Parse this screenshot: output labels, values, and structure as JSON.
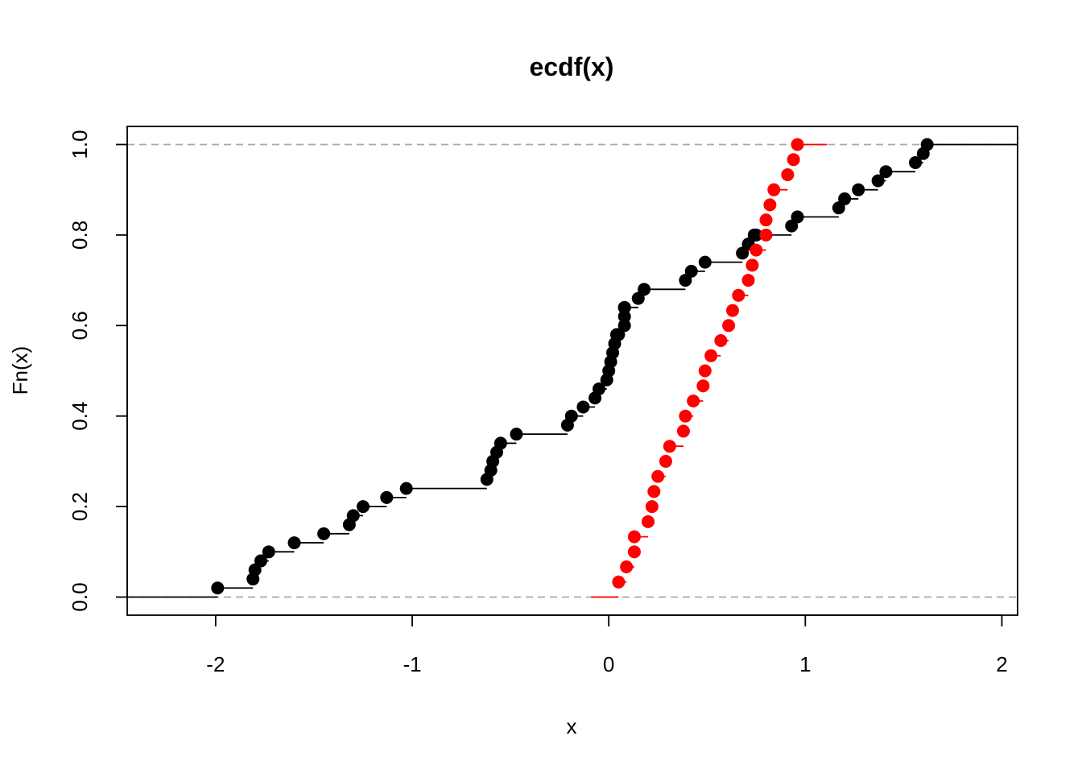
{
  "chart_data": {
    "type": "step",
    "title": "ecdf(x)",
    "xlabel": "x",
    "ylabel": "Fn(x)",
    "xlim": [
      -2.45,
      2.08
    ],
    "ylim": [
      -0.04,
      1.04
    ],
    "x_ticks": [
      {
        "value": -2,
        "label": "-2"
      },
      {
        "value": -1,
        "label": "-1"
      },
      {
        "value": 0,
        "label": "0"
      },
      {
        "value": 1,
        "label": "1"
      },
      {
        "value": 2,
        "label": "2"
      }
    ],
    "y_ticks": [
      {
        "value": 0.0,
        "label": "0.0"
      },
      {
        "value": 0.2,
        "label": "0.2"
      },
      {
        "value": 0.4,
        "label": "0.4"
      },
      {
        "value": 0.6,
        "label": "0.6"
      },
      {
        "value": 0.8,
        "label": "0.8"
      },
      {
        "value": 1.0,
        "label": "1.0"
      }
    ],
    "reference_lines": [
      0,
      1
    ],
    "series": [
      {
        "color": "#000000",
        "x": [
          -1.99,
          -1.81,
          -1.8,
          -1.77,
          -1.73,
          -1.6,
          -1.45,
          -1.32,
          -1.3,
          -1.25,
          -1.13,
          -1.03,
          -0.62,
          -0.6,
          -0.59,
          -0.57,
          -0.55,
          -0.47,
          -0.21,
          -0.19,
          -0.13,
          -0.07,
          -0.05,
          -0.01,
          0.0,
          0.01,
          0.02,
          0.03,
          0.04,
          0.05,
          0.08,
          0.08,
          0.08,
          0.08,
          0.15,
          0.18,
          0.39,
          0.42,
          0.49,
          0.68,
          0.71,
          0.74,
          0.75,
          0.93,
          0.96,
          1.17,
          1.2,
          1.27,
          1.37,
          1.41,
          1.56,
          1.6,
          1.62
        ],
        "y": [
          0.02,
          0.04,
          0.06,
          0.08,
          0.1,
          0.12,
          0.14,
          0.16,
          0.18,
          0.2,
          0.22,
          0.24,
          0.26,
          0.28,
          0.3,
          0.32,
          0.34,
          0.36,
          0.38,
          0.4,
          0.42,
          0.44,
          0.46,
          0.48,
          0.5,
          0.52,
          0.54,
          0.56,
          0.58,
          0.58,
          0.6,
          0.62,
          0.64,
          0.64,
          0.66,
          0.68,
          0.7,
          0.72,
          0.74,
          0.76,
          0.78,
          0.8,
          0.8,
          0.82,
          0.84,
          0.86,
          0.88,
          0.9,
          0.92,
          0.94,
          0.96,
          0.98,
          1.0
        ],
        "x_min": -2.45,
        "x_max": 2.08
      },
      {
        "color": "#ff0000",
        "x": [
          0.05,
          0.09,
          0.13,
          0.13,
          0.2,
          0.22,
          0.23,
          0.25,
          0.29,
          0.31,
          0.38,
          0.39,
          0.43,
          0.48,
          0.49,
          0.52,
          0.57,
          0.61,
          0.63,
          0.66,
          0.71,
          0.73,
          0.75,
          0.8,
          0.8,
          0.82,
          0.84,
          0.91,
          0.94,
          0.96
        ],
        "y": [
          0.0333,
          0.0667,
          0.1,
          0.1333,
          0.1667,
          0.2,
          0.2333,
          0.2667,
          0.3,
          0.3333,
          0.3667,
          0.4,
          0.4333,
          0.4667,
          0.5,
          0.5333,
          0.5667,
          0.6,
          0.6333,
          0.6667,
          0.7,
          0.7333,
          0.7667,
          0.8,
          0.8333,
          0.8667,
          0.9,
          0.9333,
          0.9667,
          1.0
        ],
        "x_min": -0.09,
        "x_max": 1.11
      }
    ]
  }
}
